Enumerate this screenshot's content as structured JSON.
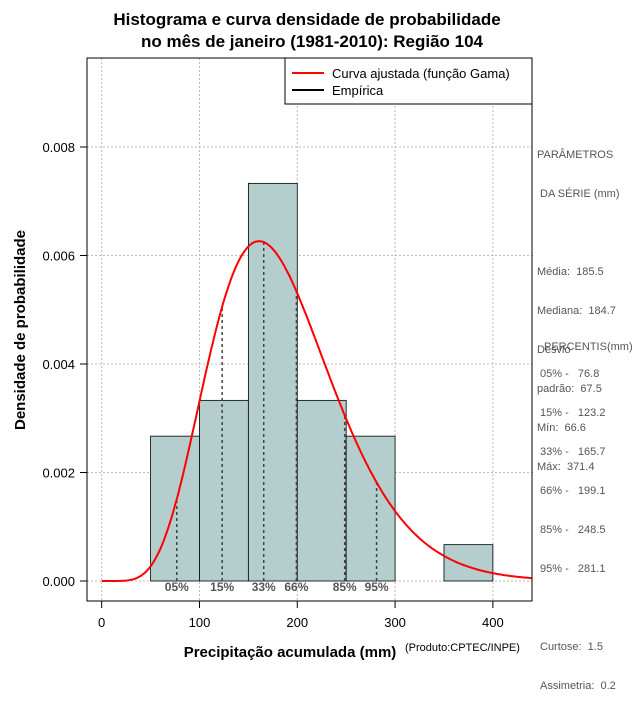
{
  "chart_data": {
    "type": "bar",
    "title_line1": "Histograma e curva densidade de probabilidade",
    "title_line2": "no mês de janeiro (1981-2010): Região 104",
    "xlabel": "Precipitação acumulada (mm)",
    "ylabel": "Densidade de probabilidade",
    "credit": "(Produto:CPTEC/INPE)",
    "xlim": [
      -15,
      440
    ],
    "ylim": [
      0,
      0.0095
    ],
    "x_ticks": [
      0,
      100,
      200,
      300,
      400
    ],
    "y_ticks": [
      0.0,
      0.002,
      0.004,
      0.006,
      0.008
    ],
    "y_tick_labels": [
      "0.000",
      "0.002",
      "0.004",
      "0.006",
      "0.008"
    ],
    "grid": true,
    "bins": [
      {
        "start": 50,
        "end": 100,
        "density": 0.00267
      },
      {
        "start": 100,
        "end": 150,
        "density": 0.00333
      },
      {
        "start": 150,
        "end": 200,
        "density": 0.00733
      },
      {
        "start": 200,
        "end": 250,
        "density": 0.00333
      },
      {
        "start": 250,
        "end": 300,
        "density": 0.00267
      },
      {
        "start": 350,
        "end": 400,
        "density": 0.00067
      }
    ],
    "gamma_fit": {
      "mean": 185.5,
      "sd": 67.5
    },
    "percentile_marks": [
      {
        "label": "05%",
        "value": 76.8
      },
      {
        "label": "15%",
        "value": 123.2
      },
      {
        "label": "33%",
        "value": 165.7
      },
      {
        "label": "66%",
        "value": 199.1
      },
      {
        "label": "85%",
        "value": 248.5
      },
      {
        "label": "95%",
        "value": 281.1
      }
    ],
    "legend": [
      {
        "label": "Curva ajustada (função Gama)",
        "color": "#ff0000"
      },
      {
        "label": "Empírica",
        "color": "#000000"
      }
    ],
    "colors": {
      "bar_fill": "#b3cecc",
      "curve": "#ff0000"
    }
  },
  "sidebar": {
    "params_title_1": "PARÂMETROS",
    "params_title_2": " DA SÉRIE (mm)",
    "media": "Média:  185.5",
    "mediana": "Mediana:  184.7",
    "desvio_1": "Desvio",
    "desvio_2": "padrão:  67.5",
    "min": "Mín:  66.6",
    "max": "Máx:  371.4",
    "percentis_title": "PERCENTIS(mm)",
    "p05": "05% -   76.8",
    "p15": "15% -   123.2",
    "p33": "33% -   165.7",
    "p66": "66% -   199.1",
    "p85": "85% -   248.5",
    "p95": "95% -   281.1",
    "curtose": "Curtose:  1.5",
    "assimetria": "Assimetria:  0.2"
  }
}
